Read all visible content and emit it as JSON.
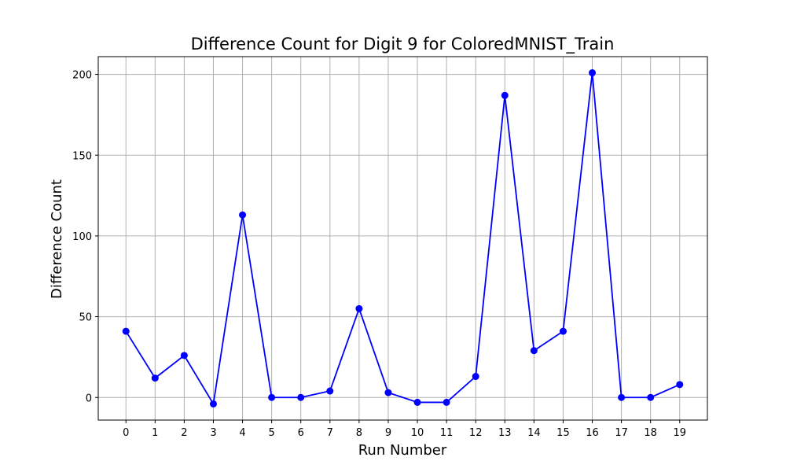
{
  "chart_data": {
    "type": "line",
    "title": "Difference Count for Digit 9 for ColoredMNIST_Train",
    "xlabel": "Run Number",
    "ylabel": "Difference Count",
    "x": [
      0,
      1,
      2,
      3,
      4,
      5,
      6,
      7,
      8,
      9,
      10,
      11,
      12,
      13,
      14,
      15,
      16,
      17,
      18,
      19
    ],
    "x_ticks": [
      "0",
      "1",
      "2",
      "3",
      "4",
      "5",
      "6",
      "7",
      "8",
      "9",
      "10",
      "11",
      "12",
      "13",
      "14",
      "15",
      "16",
      "17",
      "18",
      "19"
    ],
    "y_ticks": [
      "0",
      "50",
      "100",
      "150",
      "200"
    ],
    "xlim": [
      -0.95,
      19.95
    ],
    "ylim": [
      -14,
      211
    ],
    "grid": true,
    "series": [
      {
        "values": [
          41,
          12,
          26,
          -4,
          113,
          0,
          0,
          4,
          55,
          3,
          -3,
          -3,
          13,
          187,
          29,
          41,
          201,
          0,
          0,
          8
        ],
        "color": "#0000ff",
        "marker": "circle"
      }
    ]
  }
}
